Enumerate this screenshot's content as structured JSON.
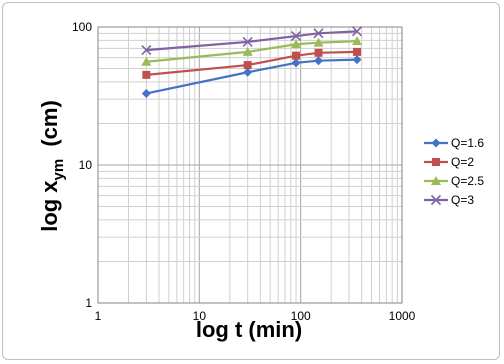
{
  "chart_data": {
    "type": "line",
    "title": "",
    "xlabel": "log t (min)",
    "ylabel_main": "log  x",
    "ylabel_sub": "ym",
    "ylabel_unit": "(cm)",
    "xscale": "log",
    "yscale": "log",
    "xlim": [
      1,
      1000
    ],
    "ylim": [
      1,
      100
    ],
    "x_ticks": [
      1,
      10,
      100,
      1000
    ],
    "y_ticks": [
      1,
      10,
      100
    ],
    "x_tick_labels": [
      "1",
      "10",
      "100",
      "1000"
    ],
    "y_tick_labels": [
      "1",
      "10",
      "100"
    ],
    "grid": "major and minor",
    "legend_position": "right",
    "x": [
      3,
      30,
      90,
      150,
      360
    ],
    "series": [
      {
        "name": "Q=1.6",
        "color": "#4472C4",
        "marker": "diamond",
        "values": [
          33,
          47,
          55,
          57,
          58
        ]
      },
      {
        "name": "Q=2",
        "color": "#C0504D",
        "marker": "square",
        "values": [
          45,
          53,
          62,
          65,
          66
        ]
      },
      {
        "name": "Q=2.5",
        "color": "#9BBB59",
        "marker": "triangle",
        "values": [
          56,
          66,
          75,
          77,
          79
        ]
      },
      {
        "name": "Q=3",
        "color": "#8064A2",
        "marker": "x",
        "values": [
          68,
          78,
          86,
          90,
          93
        ]
      }
    ]
  }
}
